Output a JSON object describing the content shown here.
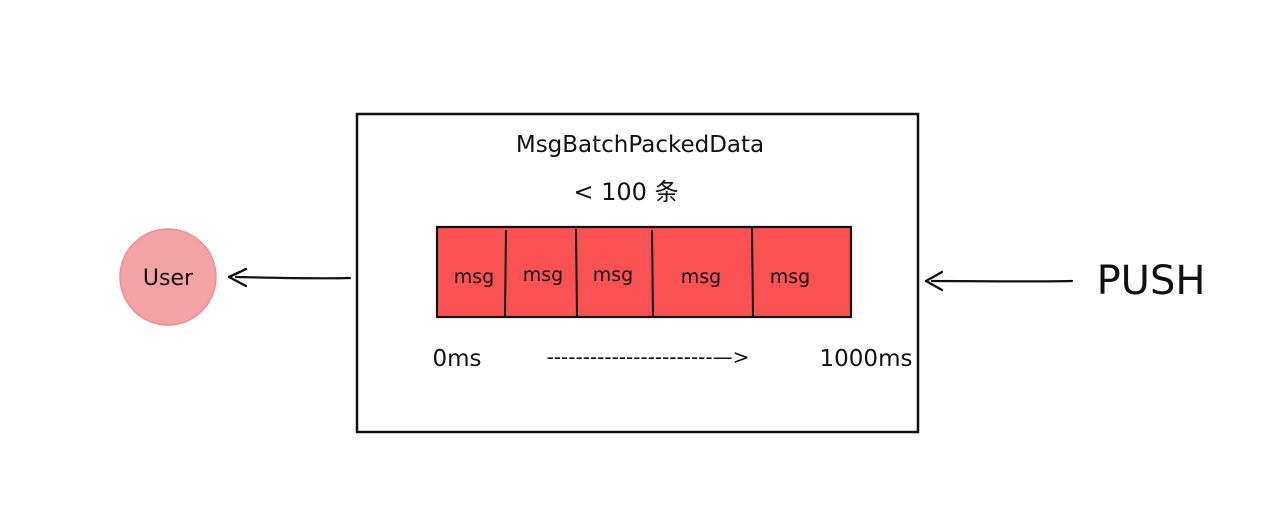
{
  "diagram": {
    "user_label": "User",
    "batch_title": "MsgBatchPackedData",
    "limit_label": "< 100 条",
    "messages": [
      "msg",
      "msg",
      "msg",
      "msg",
      "msg"
    ],
    "time_start": "0ms",
    "time_dashes": "-----------------------—>",
    "time_end": "1000ms",
    "push_label": "PUSH",
    "colors": {
      "user_fill": "#f4a3a5",
      "msg_fill": "#fa5252",
      "stroke": "#111111"
    }
  }
}
